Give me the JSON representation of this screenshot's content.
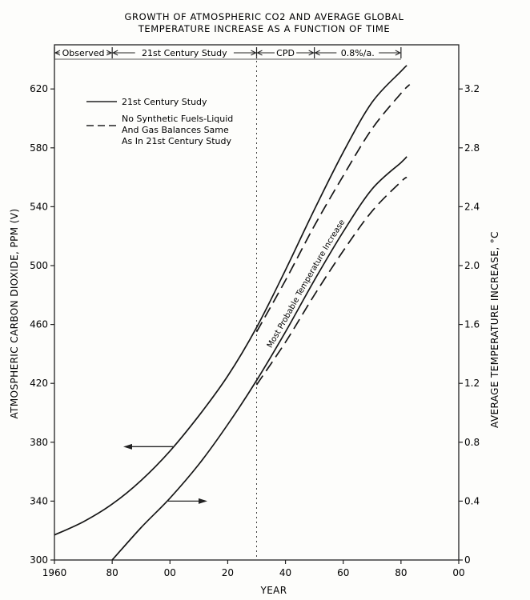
{
  "chart_data": {
    "type": "line",
    "title_line1": "GROWTH OF ATMOSPHERIC CO2 AND AVERAGE GLOBAL",
    "title_line2": "TEMPERATURE INCREASE AS A FUNCTION OF TIME",
    "xlabel": "YEAR",
    "ylabel_left": "ATMOSPHERIC CARBON DIOXIDE, PPM (V)",
    "ylabel_right": "AVERAGE TEMPERATURE INCREASE, °C",
    "xlim": [
      1960,
      2100
    ],
    "ylim_left": [
      300,
      650
    ],
    "ylim_right": [
      0,
      3.5
    ],
    "x_ticks": [
      {
        "value": 1960,
        "label": "1960"
      },
      {
        "value": 1980,
        "label": "80"
      },
      {
        "value": 2000,
        "label": "00"
      },
      {
        "value": 2020,
        "label": "20"
      },
      {
        "value": 2040,
        "label": "40"
      },
      {
        "value": 2060,
        "label": "60"
      },
      {
        "value": 2080,
        "label": "80"
      },
      {
        "value": 2100,
        "label": "00"
      }
    ],
    "y_ticks_left": [
      {
        "value": 300,
        "label": "300"
      },
      {
        "value": 340,
        "label": "340"
      },
      {
        "value": 380,
        "label": "380"
      },
      {
        "value": 420,
        "label": "420"
      },
      {
        "value": 460,
        "label": "460"
      },
      {
        "value": 500,
        "label": "500"
      },
      {
        "value": 540,
        "label": "540"
      },
      {
        "value": 580,
        "label": "580"
      },
      {
        "value": 620,
        "label": "620"
      }
    ],
    "y_ticks_right": [
      {
        "value": 0,
        "label": "0"
      },
      {
        "value": 0.4,
        "label": "0.4"
      },
      {
        "value": 0.8,
        "label": "0.8"
      },
      {
        "value": 1.2,
        "label": "1.2"
      },
      {
        "value": 1.6,
        "label": "1.6"
      },
      {
        "value": 2.0,
        "label": "2.0"
      },
      {
        "value": 2.4,
        "label": "2.4"
      },
      {
        "value": 2.8,
        "label": "2.8"
      },
      {
        "value": 3.2,
        "label": "3.2"
      }
    ],
    "periods": [
      {
        "label": "Observed",
        "start": 1960,
        "end": 1980
      },
      {
        "label": "21st Century Study",
        "start": 1980,
        "end": 2030
      },
      {
        "label": "CPD",
        "start": 2030,
        "end": 2050
      },
      {
        "label": "0.8%/a.",
        "start": 2050,
        "end": 2080
      }
    ],
    "legend": [
      {
        "label": "21st Century Study",
        "style": "solid"
      },
      {
        "label_lines": [
          "No Synthetic Fuels-Liquid",
          "And Gas Balances Same",
          "As In 21st Century Study"
        ],
        "style": "dashed"
      }
    ],
    "series": [
      {
        "name": "CO2 - 21st Century Study",
        "axis": "left",
        "style": "solid",
        "x": [
          1960,
          1970,
          1980,
          1990,
          2000,
          2010,
          2020,
          2030,
          2040,
          2050,
          2060,
          2070,
          2080,
          2082
        ],
        "y": [
          317,
          326,
          338,
          354,
          374,
          398,
          425,
          458,
          497,
          538,
          577,
          611,
          632,
          636
        ]
      },
      {
        "name": "CO2 - No Synthetic Fuels",
        "axis": "left",
        "style": "dashed",
        "x": [
          2030,
          2040,
          2050,
          2060,
          2070,
          2080,
          2083
        ],
        "y": [
          455,
          490,
          527,
          561,
          593,
          617,
          623
        ]
      },
      {
        "name": "Temperature - 21st Century Study",
        "axis": "right",
        "style": "solid",
        "x": [
          1980,
          1990,
          2000,
          2010,
          2020,
          2030,
          2040,
          2050,
          2060,
          2070,
          2080,
          2082
        ],
        "y": [
          0.0,
          0.22,
          0.42,
          0.65,
          0.92,
          1.22,
          1.55,
          1.9,
          2.23,
          2.52,
          2.7,
          2.74
        ]
      },
      {
        "name": "Temperature - No Synthetic Fuels",
        "axis": "right",
        "style": "dashed",
        "x": [
          2030,
          2040,
          2050,
          2060,
          2070,
          2080,
          2082
        ],
        "y": [
          1.19,
          1.48,
          1.8,
          2.1,
          2.37,
          2.57,
          2.6
        ]
      }
    ],
    "annotations": [
      {
        "text": "Most Probable Temperature Increase",
        "note": "written along the lower solid curve"
      }
    ],
    "arrows": [
      {
        "points_to": "left axis (CO2)"
      },
      {
        "points_to": "right axis (temperature)"
      }
    ]
  }
}
